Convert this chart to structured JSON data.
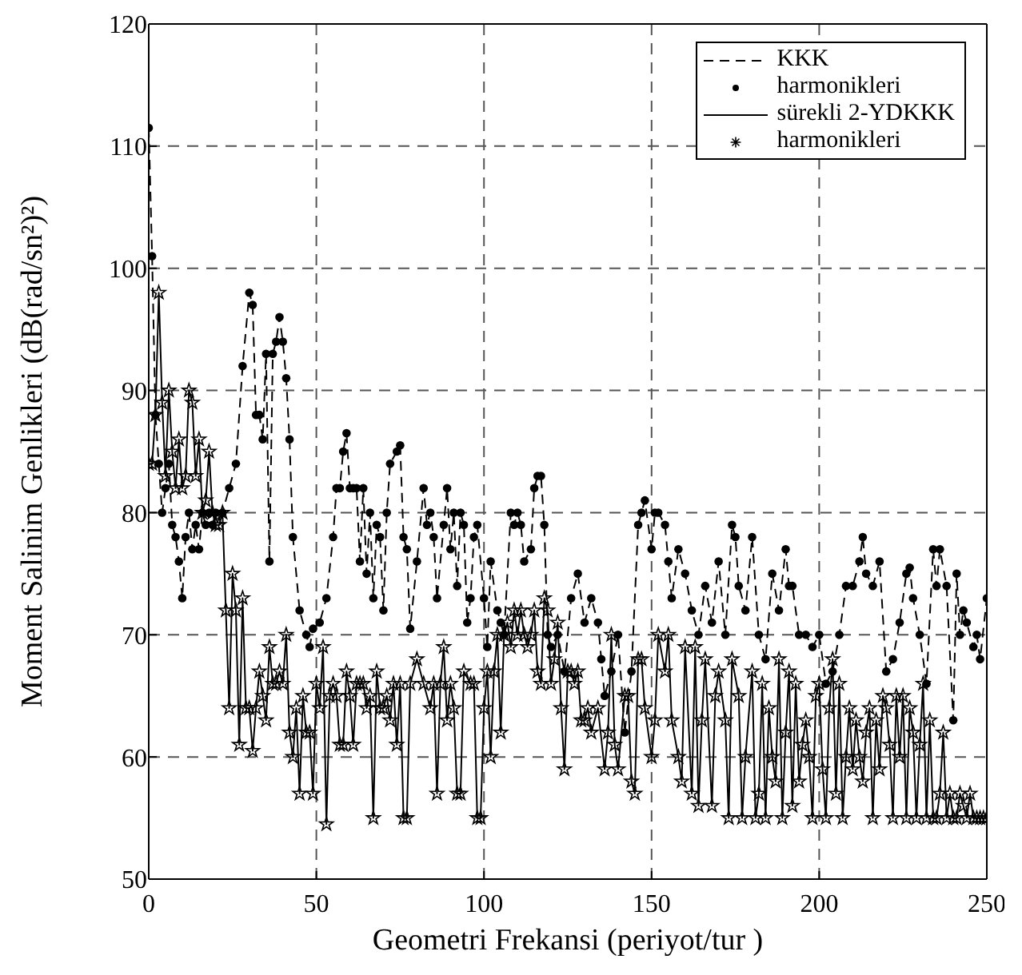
{
  "chart_data": {
    "type": "line",
    "xlabel": "Geometri Frekansi (periyot/tur )",
    "ylabel": "Moment Salinim Genlikleri (dB(rad/sn²)²)",
    "xlim": [
      0,
      250
    ],
    "ylim": [
      50,
      120
    ],
    "xticks": [
      0,
      50,
      100,
      150,
      200,
      250
    ],
    "yticks": [
      50,
      60,
      70,
      80,
      90,
      100,
      110,
      120
    ],
    "grid": true,
    "legend": "top right",
    "series": [
      {
        "name": "KKK",
        "line_style": "dashed",
        "marker": "none",
        "color": "#000000",
        "x": [
          0,
          1,
          2,
          3,
          4,
          5,
          6,
          7,
          8,
          9,
          10,
          11,
          12,
          13,
          14,
          15,
          16,
          17,
          18,
          19,
          20,
          22,
          24,
          26,
          28,
          30,
          31,
          32,
          33,
          34,
          35,
          36,
          37,
          38,
          39,
          40,
          41,
          42,
          43,
          45,
          47,
          48,
          49,
          51,
          53,
          55,
          56,
          57,
          58,
          59,
          60,
          61,
          62,
          63,
          64,
          65,
          66,
          67,
          68,
          69,
          70,
          71,
          72,
          74,
          75,
          76,
          77,
          78,
          80,
          82,
          83,
          84,
          85,
          86,
          88,
          89,
          90,
          91,
          92,
          93,
          94,
          95,
          96,
          97,
          98,
          100,
          101,
          102,
          104,
          105,
          106,
          108,
          109,
          110,
          111,
          112,
          114,
          115,
          116,
          117,
          118,
          119,
          120,
          122,
          124,
          126,
          128,
          130,
          132,
          134,
          135,
          136,
          138,
          140,
          142,
          144,
          146,
          147,
          148,
          150,
          151,
          152,
          154,
          155,
          156,
          158,
          160,
          162,
          164,
          166,
          168,
          170,
          172,
          174,
          175,
          176,
          178,
          180,
          182,
          184,
          186,
          188,
          190,
          191,
          192,
          194,
          196,
          198,
          200,
          202,
          204,
          206,
          208,
          210,
          212,
          213,
          214,
          216,
          218,
          220,
          222,
          224,
          226,
          227,
          228,
          230,
          232,
          234,
          235,
          236,
          238,
          240,
          241,
          242,
          243,
          244,
          246,
          247,
          248,
          250
        ],
        "values": [
          111.5,
          101,
          88,
          84,
          80,
          82,
          84,
          79,
          78,
          76,
          73,
          78,
          80,
          77,
          79,
          77,
          80,
          79,
          80,
          79,
          80,
          80,
          82,
          84,
          92,
          98,
          97,
          88,
          88,
          86,
          93,
          76,
          93,
          94,
          96,
          94,
          91,
          86,
          78,
          72,
          70,
          69,
          70.5,
          71,
          73,
          78,
          82,
          82,
          85,
          86.5,
          82,
          82,
          82,
          76,
          82,
          75,
          80,
          73,
          79,
          78,
          72,
          80,
          84,
          85,
          85.5,
          78,
          77,
          70.5,
          76,
          82,
          79,
          80,
          78,
          73,
          79,
          82,
          77,
          80,
          74,
          80,
          79,
          71,
          73,
          78,
          79,
          73,
          69,
          76,
          72,
          71,
          70,
          80,
          79,
          80,
          79,
          76,
          77,
          82,
          83,
          83,
          79,
          70,
          69,
          70,
          67,
          73,
          75,
          71,
          73,
          71,
          68,
          65,
          67,
          70,
          62,
          67,
          79,
          80,
          81,
          77,
          80,
          80,
          79,
          76,
          73,
          77,
          75,
          72,
          70,
          74,
          71,
          76,
          70,
          79,
          78,
          74,
          72,
          78,
          70,
          68,
          75,
          72,
          77,
          74,
          74,
          70,
          70,
          69,
          70,
          66,
          67,
          70,
          74,
          74,
          76,
          78,
          75,
          74,
          76,
          67,
          68,
          71,
          75,
          75.5,
          73,
          70,
          66,
          77,
          74,
          77,
          74,
          63,
          75,
          70,
          72,
          71,
          69,
          70,
          68,
          73
        ]
      },
      {
        "name": "harmonikleri",
        "type": "scatter",
        "marker": "circle",
        "color": "#000000",
        "x": [
          0,
          1,
          2,
          3,
          4,
          5,
          6,
          7,
          8,
          9,
          10,
          11,
          12,
          13,
          14,
          15,
          16,
          17,
          18,
          19,
          20,
          22,
          24,
          26,
          28,
          30,
          31,
          32,
          33,
          34,
          35,
          36,
          37,
          38,
          39,
          40,
          41,
          42,
          43,
          45,
          47,
          48,
          49,
          51,
          53,
          55,
          56,
          57,
          58,
          59,
          60,
          61,
          62,
          63,
          64,
          65,
          66,
          67,
          68,
          69,
          70,
          71,
          72,
          74,
          75,
          76,
          77,
          78,
          80,
          82,
          83,
          84,
          85,
          86,
          88,
          89,
          90,
          91,
          92,
          93,
          94,
          95,
          96,
          97,
          98,
          100,
          101,
          102,
          104,
          105,
          106,
          108,
          109,
          110,
          111,
          112,
          114,
          115,
          116,
          117,
          118,
          119,
          120,
          122,
          124,
          126,
          128,
          130,
          132,
          134,
          135,
          136,
          138,
          140,
          142,
          144,
          146,
          147,
          148,
          150,
          151,
          152,
          154,
          155,
          156,
          158,
          160,
          162,
          164,
          166,
          168,
          170,
          172,
          174,
          175,
          176,
          178,
          180,
          182,
          184,
          186,
          188,
          190,
          191,
          192,
          194,
          196,
          198,
          200,
          202,
          204,
          206,
          208,
          210,
          212,
          213,
          214,
          216,
          218,
          220,
          222,
          224,
          226,
          227,
          228,
          230,
          232,
          234,
          235,
          236,
          238,
          240,
          241,
          242,
          243,
          244,
          246,
          247,
          248,
          250
        ],
        "values": [
          111.5,
          101,
          88,
          84,
          80,
          82,
          84,
          79,
          78,
          76,
          73,
          78,
          80,
          77,
          79,
          77,
          80,
          79,
          80,
          79,
          80,
          80,
          82,
          84,
          92,
          98,
          97,
          88,
          88,
          86,
          93,
          76,
          93,
          94,
          96,
          94,
          91,
          86,
          78,
          72,
          70,
          69,
          70.5,
          71,
          73,
          78,
          82,
          82,
          85,
          86.5,
          82,
          82,
          82,
          76,
          82,
          75,
          80,
          73,
          79,
          78,
          72,
          80,
          84,
          85,
          85.5,
          78,
          77,
          70.5,
          76,
          82,
          79,
          80,
          78,
          73,
          79,
          82,
          77,
          80,
          74,
          80,
          79,
          71,
          73,
          78,
          79,
          73,
          69,
          76,
          72,
          71,
          70,
          80,
          79,
          80,
          79,
          76,
          77,
          82,
          83,
          83,
          79,
          70,
          69,
          70,
          67,
          73,
          75,
          71,
          73,
          71,
          68,
          65,
          67,
          70,
          62,
          67,
          79,
          80,
          81,
          77,
          80,
          80,
          79,
          76,
          73,
          77,
          75,
          72,
          70,
          74,
          71,
          76,
          70,
          79,
          78,
          74,
          72,
          78,
          70,
          68,
          75,
          72,
          77,
          74,
          74,
          70,
          70,
          69,
          70,
          66,
          67,
          70,
          74,
          74,
          76,
          78,
          75,
          74,
          76,
          67,
          68,
          71,
          75,
          75.5,
          73,
          70,
          66,
          77,
          74,
          77,
          74,
          63,
          75,
          70,
          72,
          71,
          69,
          70,
          68,
          73
        ]
      },
      {
        "name": "sürekli 2-YDKKK",
        "line_style": "solid",
        "marker": "none",
        "color": "#000000",
        "x": [
          0,
          1,
          2,
          3,
          4,
          5,
          6,
          7,
          8,
          9,
          10,
          11,
          12,
          13,
          14,
          15,
          16,
          17,
          18,
          19,
          20,
          21,
          22,
          23,
          24,
          25,
          26,
          27,
          28,
          29,
          30,
          31,
          32,
          33,
          34,
          35,
          36,
          37,
          38,
          39,
          40,
          41,
          42,
          43,
          44,
          45,
          46,
          47,
          48,
          49,
          50,
          51,
          52,
          53,
          54,
          55,
          56,
          57,
          58,
          59,
          60,
          61,
          62,
          63,
          64,
          65,
          66,
          67,
          68,
          69,
          70,
          71,
          72,
          73,
          74,
          75,
          76,
          77,
          78,
          80,
          82,
          84,
          85,
          86,
          87,
          88,
          89,
          90,
          91,
          92,
          93,
          94,
          96,
          97,
          98,
          99,
          100,
          101,
          102,
          103,
          104,
          105,
          106,
          107,
          108,
          109,
          110,
          111,
          112,
          113,
          114,
          115,
          116,
          117,
          118,
          119,
          120,
          121,
          122,
          123,
          124,
          125,
          126,
          127,
          128,
          129,
          130,
          131,
          132,
          134,
          136,
          137,
          138,
          139,
          140,
          142,
          143,
          144,
          145,
          146,
          147,
          148,
          150,
          151,
          152,
          154,
          155,
          156,
          158,
          159,
          160,
          162,
          163,
          164,
          165,
          166,
          168,
          169,
          170,
          172,
          173,
          174,
          176,
          177,
          178,
          180,
          181,
          182,
          183,
          184,
          185,
          186,
          187,
          188,
          189,
          190,
          191,
          192,
          193,
          194,
          195,
          196,
          197,
          198,
          199,
          200,
          201,
          202,
          203,
          204,
          205,
          206,
          207,
          208,
          209,
          210,
          211,
          212,
          213,
          214,
          215,
          216,
          217,
          218,
          219,
          220,
          221,
          222,
          223,
          224,
          225,
          226,
          227,
          228,
          229,
          230,
          231,
          232,
          233,
          234,
          235,
          236,
          237,
          238,
          239,
          240,
          241,
          242,
          243,
          244,
          245,
          246,
          247,
          248,
          249,
          250
        ],
        "values": [
          84,
          84,
          88,
          98,
          89,
          83,
          90,
          85,
          82,
          86,
          82,
          83,
          90,
          89,
          83,
          86,
          80,
          81,
          85,
          80,
          79,
          79,
          80,
          72,
          64,
          75,
          72,
          61,
          73,
          64,
          64,
          60.5,
          64,
          67,
          65,
          63,
          69,
          66,
          66,
          67,
          66,
          70,
          62,
          60,
          64,
          57,
          65,
          62,
          62,
          57,
          66,
          64,
          69,
          54.5,
          65,
          66,
          65,
          61,
          61,
          67,
          65,
          61,
          66,
          66,
          66,
          64,
          65,
          55,
          67,
          64,
          64,
          65,
          63,
          66,
          61,
          66,
          55,
          55,
          66,
          68,
          66,
          64,
          66,
          57,
          66,
          69,
          63,
          66,
          64,
          57,
          57,
          67,
          66,
          66,
          55,
          55,
          64,
          67,
          60,
          67,
          70,
          62,
          70,
          71,
          69,
          72,
          70,
          72,
          70,
          69,
          70,
          72,
          67,
          66,
          73,
          72,
          66,
          68,
          71,
          64,
          59,
          67,
          67,
          66,
          67,
          63,
          63,
          64,
          62,
          64,
          59,
          62,
          70,
          61,
          59,
          65,
          65,
          58,
          57,
          68,
          68,
          64,
          60,
          63,
          70,
          67,
          70,
          63,
          60,
          58,
          69,
          57,
          69,
          56,
          63,
          68,
          56,
          65,
          67,
          63,
          55,
          68,
          65,
          55,
          60,
          67,
          55,
          57,
          66,
          55,
          64,
          60,
          58,
          68,
          55,
          62,
          67,
          56,
          66,
          58,
          61,
          63,
          60,
          55,
          65,
          66,
          59,
          55,
          64,
          68,
          57,
          66,
          55,
          60,
          64,
          59,
          63,
          60,
          58,
          62,
          64,
          55,
          63,
          59,
          65,
          64,
          61,
          55,
          65,
          60,
          65,
          55,
          64,
          62,
          55,
          61,
          66,
          55,
          63,
          55,
          55,
          57,
          62,
          55,
          57,
          55,
          55,
          57,
          56,
          55,
          57,
          55,
          55,
          55,
          55,
          55
        ]
      },
      {
        "name": "harmonikleri",
        "type": "scatter",
        "marker": "star",
        "color": "#000000",
        "x": [
          0,
          1,
          2,
          3,
          4,
          5,
          6,
          7,
          8,
          9,
          10,
          11,
          12,
          13,
          14,
          15,
          16,
          17,
          18,
          19,
          20,
          21,
          22,
          23,
          24,
          25,
          26,
          27,
          28,
          29,
          30,
          31,
          32,
          33,
          34,
          35,
          36,
          37,
          38,
          39,
          40,
          41,
          42,
          43,
          44,
          45,
          46,
          47,
          48,
          49,
          50,
          51,
          52,
          53,
          54,
          55,
          56,
          57,
          58,
          59,
          60,
          61,
          62,
          63,
          64,
          65,
          66,
          67,
          68,
          69,
          70,
          71,
          72,
          73,
          74,
          75,
          76,
          77,
          78,
          80,
          82,
          84,
          85,
          86,
          87,
          88,
          89,
          90,
          91,
          92,
          93,
          94,
          96,
          97,
          98,
          99,
          100,
          101,
          102,
          103,
          104,
          105,
          106,
          107,
          108,
          109,
          110,
          111,
          112,
          113,
          114,
          115,
          116,
          117,
          118,
          119,
          120,
          121,
          122,
          123,
          124,
          125,
          126,
          127,
          128,
          129,
          130,
          131,
          132,
          134,
          136,
          137,
          138,
          139,
          140,
          142,
          143,
          144,
          145,
          146,
          147,
          148,
          150,
          151,
          152,
          154,
          155,
          156,
          158,
          159,
          160,
          162,
          163,
          164,
          165,
          166,
          168,
          169,
          170,
          172,
          173,
          174,
          176,
          177,
          178,
          180,
          181,
          182,
          183,
          184,
          185,
          186,
          187,
          188,
          189,
          190,
          191,
          192,
          193,
          194,
          195,
          196,
          197,
          198,
          199,
          200,
          201,
          202,
          203,
          204,
          205,
          206,
          207,
          208,
          209,
          210,
          211,
          212,
          213,
          214,
          215,
          216,
          217,
          218,
          219,
          220,
          221,
          222,
          223,
          224,
          225,
          226,
          227,
          228,
          229,
          230,
          231,
          232,
          233,
          234,
          235,
          236,
          237,
          238,
          239,
          240,
          241,
          242,
          243,
          244,
          245,
          246,
          247,
          248,
          249,
          250
        ],
        "values": [
          84,
          84,
          88,
          98,
          89,
          83,
          90,
          85,
          82,
          86,
          82,
          83,
          90,
          89,
          83,
          86,
          80,
          81,
          85,
          80,
          79,
          79,
          80,
          72,
          64,
          75,
          72,
          61,
          73,
          64,
          64,
          60.5,
          64,
          67,
          65,
          63,
          69,
          66,
          66,
          67,
          66,
          70,
          62,
          60,
          64,
          57,
          65,
          62,
          62,
          57,
          66,
          64,
          69,
          54.5,
          65,
          66,
          65,
          61,
          61,
          67,
          65,
          61,
          66,
          66,
          66,
          64,
          65,
          55,
          67,
          64,
          64,
          65,
          63,
          66,
          61,
          66,
          55,
          55,
          66,
          68,
          66,
          64,
          66,
          57,
          66,
          69,
          63,
          66,
          64,
          57,
          57,
          67,
          66,
          66,
          55,
          55,
          64,
          67,
          60,
          67,
          70,
          62,
          70,
          71,
          69,
          72,
          70,
          72,
          70,
          69,
          70,
          72,
          67,
          66,
          73,
          72,
          66,
          68,
          71,
          64,
          59,
          67,
          67,
          66,
          67,
          63,
          63,
          64,
          62,
          64,
          59,
          62,
          70,
          61,
          59,
          65,
          65,
          58,
          57,
          68,
          68,
          64,
          60,
          63,
          70,
          67,
          70,
          63,
          60,
          58,
          69,
          57,
          69,
          56,
          63,
          68,
          56,
          65,
          67,
          63,
          55,
          68,
          65,
          55,
          60,
          67,
          55,
          57,
          66,
          55,
          64,
          60,
          58,
          68,
          55,
          62,
          67,
          56,
          66,
          58,
          61,
          63,
          60,
          55,
          65,
          66,
          59,
          55,
          64,
          68,
          57,
          66,
          55,
          60,
          64,
          59,
          63,
          60,
          58,
          62,
          64,
          55,
          63,
          59,
          65,
          64,
          61,
          55,
          65,
          60,
          65,
          55,
          64,
          62,
          55,
          61,
          66,
          55,
          63,
          55,
          55,
          57,
          62,
          55,
          57,
          55,
          55,
          57,
          56,
          55,
          57,
          55,
          55,
          55,
          55,
          55
        ]
      }
    ]
  }
}
